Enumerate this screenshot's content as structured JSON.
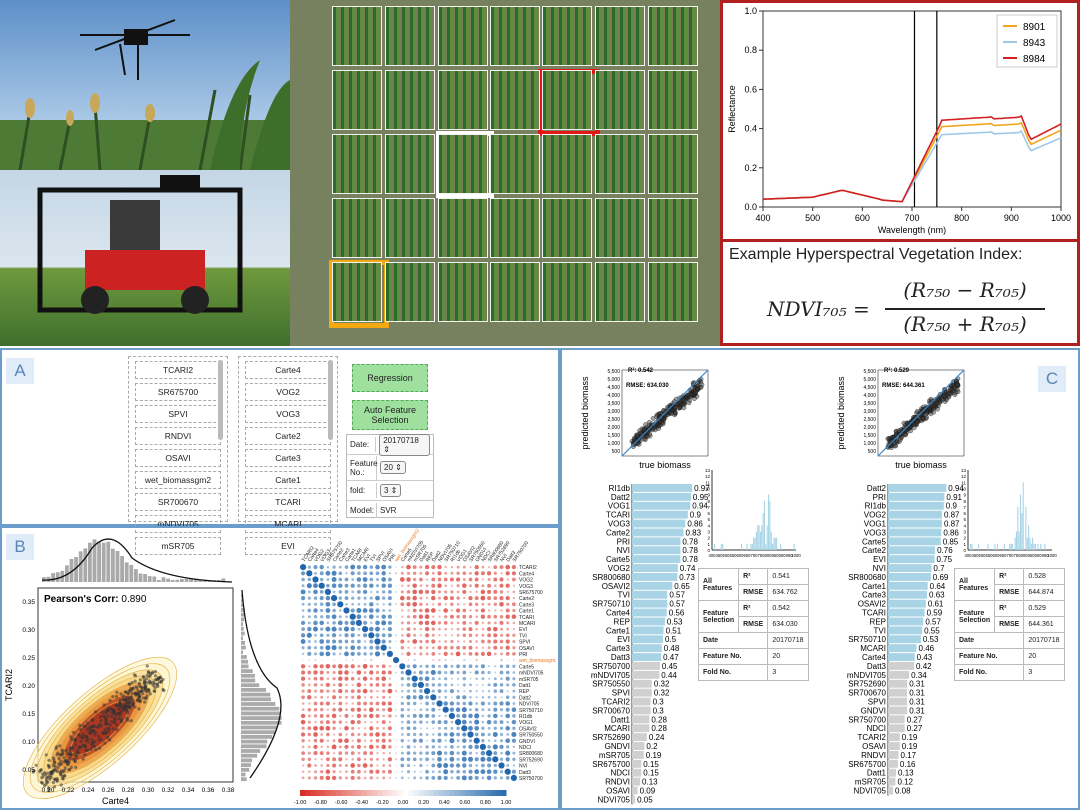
{
  "spectrum": {
    "legend": [
      "8901",
      "8943",
      "8984"
    ],
    "colors": {
      "8901": "#f2a41a",
      "8943": "#9ec9e6",
      "8984": "#d42020"
    },
    "xlabel": "Wavelength (nm)",
    "ylabel": "Reflectance",
    "xticks": [
      "400",
      "500",
      "600",
      "700",
      "800",
      "900",
      "1000"
    ],
    "yticks": [
      "0.0",
      "0.2",
      "0.4",
      "0.6",
      "0.8",
      "1.0"
    ]
  },
  "formula": {
    "title": "Example Hyperspectral Vegetation Index:",
    "lhs": "NDVI₇₀₅ =",
    "numerator": "(R₇₅₀ − R₇₀₅)",
    "denominator": "(R₇₅₀ + R₇₀₅)"
  },
  "panelA": {
    "label": "A",
    "list1": [
      "TCARI2",
      "SR675700",
      "SPVI",
      "RNDVI",
      "OSAVI",
      "wet_biomassgm2",
      "SR700670",
      "mNDVI705",
      "mSR705"
    ],
    "list2": [
      "Carte4",
      "VOG2",
      "VOG3",
      "Carte2",
      "Carte3",
      "Carte1",
      "TCARI",
      "MCARI",
      "EVI"
    ],
    "regression": "Regression",
    "auto": "Auto Feature Selection",
    "form": {
      "date_label": "Date:",
      "date_value": "20170718",
      "feature_label": "Feature No.:",
      "feature_value": "20",
      "fold_label": "fold:",
      "fold_value": "3",
      "model_label": "Model:",
      "model_value": "SVR"
    }
  },
  "panelB": {
    "label": "B",
    "corr": "Pearson's Corr: ",
    "corr_value": "0.890",
    "xlabel": "Carte4",
    "ylabel": "TCARI2",
    "xticks": [
      "0.20",
      "0.22",
      "0.24",
      "0.26",
      "0.28",
      "0.30",
      "0.32",
      "0.34",
      "0.36",
      "0.38"
    ],
    "yticks": [
      "0.05",
      "0.10",
      "0.15",
      "0.20",
      "0.25",
      "0.30",
      "0.35"
    ],
    "heat_labels": [
      "TCARI2",
      "Carte4",
      "VOG2",
      "VOG3",
      "SR675700",
      "Carte2",
      "Carte3",
      "Carte1",
      "TCARI",
      "MCARI",
      "EVI",
      "TVI",
      "SPVI",
      "OSAVI",
      "PRI",
      "wet_biomassgm2",
      "Carte5",
      "mNDVI705",
      "mSR705",
      "Datt1",
      "REP",
      "Datt2",
      "NDVI705",
      "SR750710",
      "RI1db",
      "VOG1",
      "OSAVI2",
      "SR750550",
      "GNDVI",
      "NDCI",
      "SR800680",
      "SR752690",
      "NVI",
      "Datt3",
      "SR750700"
    ],
    "colorbar": [
      "-1.00",
      "-0.80",
      "-0.60",
      "-0.40",
      "-0.20",
      "0.00",
      "0.20",
      "0.40",
      "0.60",
      "0.80",
      "1.00"
    ]
  },
  "panelC": {
    "label": "C",
    "left": {
      "r2": "R²: 0.542",
      "rmse": "RMSE: 634.030",
      "xlabel": "true biomass",
      "ylabel": "predicted biomass",
      "yticks": [
        "5,500",
        "5,000",
        "4,500",
        "4,000",
        "3,500",
        "3,000",
        "2,500",
        "2,000",
        "1,500",
        "1,000",
        "500"
      ],
      "bars": [
        [
          "RI1db",
          0.97
        ],
        [
          "Datt2",
          0.95
        ],
        [
          "VOG1",
          0.94
        ],
        [
          "TCARI",
          0.9
        ],
        [
          "VOG3",
          0.86
        ],
        [
          "Carte2",
          0.83
        ],
        [
          "PRI",
          0.78
        ],
        [
          "NVI",
          0.78
        ],
        [
          "Carte5",
          0.78
        ],
        [
          "VOG2",
          0.74
        ],
        [
          "SR800680",
          0.73
        ],
        [
          "OSAVI2",
          0.65
        ],
        [
          "TVI",
          0.57
        ],
        [
          "SR750710",
          0.57
        ],
        [
          "Carte4",
          0.56
        ],
        [
          "REP",
          0.53
        ],
        [
          "Carte1",
          0.51
        ],
        [
          "EVI",
          0.5
        ],
        [
          "Carte3",
          0.48
        ],
        [
          "Datt3",
          0.47
        ],
        [
          "SR750700",
          0.45
        ],
        [
          "mNDVI705",
          0.44
        ],
        [
          "SR750550",
          0.32
        ],
        [
          "SPVI",
          0.32
        ],
        [
          "TCARI2",
          0.3
        ],
        [
          "SR700670",
          0.3
        ],
        [
          "Datt1",
          0.28
        ],
        [
          "MCARI",
          0.28
        ],
        [
          "SR752690",
          0.24
        ],
        [
          "GNDVI",
          0.2
        ],
        [
          "mSR705",
          0.19
        ],
        [
          "SR675700",
          0.15
        ],
        [
          "NDCI",
          0.15
        ],
        [
          "RNDVI",
          0.13
        ],
        [
          "OSAVI",
          0.09
        ],
        [
          "NDVI705",
          0.05
        ]
      ],
      "highlight": 20,
      "table": {
        "all_label": "All Features",
        "r2_label": "R²",
        "all_r2": "0.541",
        "rmse_label": "RMSE",
        "all_rmse": "634.762",
        "fs_label": "Feature Selection",
        "fs_r2": "0.542",
        "fs_rmse": "634.030",
        "date_label": "Date",
        "date": "20170718",
        "fn_label": "Feature No.",
        "fn": "20",
        "fold_label": "Fold No.",
        "fold": "3"
      }
    },
    "right": {
      "r2": "R²: 0.529",
      "rmse": "RMSE: 644.361",
      "xlabel": "true biomass",
      "ylabel": "predicted biomass",
      "bars": [
        [
          "Datt2",
          0.94
        ],
        [
          "PRI",
          0.91
        ],
        [
          "RI1db",
          0.9
        ],
        [
          "VOG2",
          0.87
        ],
        [
          "VOG1",
          0.87
        ],
        [
          "VOG3",
          0.86
        ],
        [
          "Carte5",
          0.85
        ],
        [
          "Carte2",
          0.76
        ],
        [
          "EVI",
          0.75
        ],
        [
          "NVI",
          0.7
        ],
        [
          "SR800680",
          0.69
        ],
        [
          "Carte1",
          0.64
        ],
        [
          "Carte3",
          0.63
        ],
        [
          "OSAVI2",
          0.61
        ],
        [
          "TCARI",
          0.59
        ],
        [
          "REP",
          0.57
        ],
        [
          "TVI",
          0.55
        ],
        [
          "SR750710",
          0.53
        ],
        [
          "MCARI",
          0.46
        ],
        [
          "Carte4",
          0.43
        ],
        [
          "Datt3",
          0.42
        ],
        [
          "mNDVI705",
          0.34
        ],
        [
          "SR752690",
          0.31
        ],
        [
          "SR700670",
          0.31
        ],
        [
          "SPVI",
          0.31
        ],
        [
          "GNDVI",
          0.31
        ],
        [
          "SR750700",
          0.27
        ],
        [
          "NDCI",
          0.27
        ],
        [
          "TCARI2",
          0.19
        ],
        [
          "OSAVI",
          0.19
        ],
        [
          "RNDVI",
          0.17
        ],
        [
          "SR675700",
          0.16
        ],
        [
          "Datt1",
          0.13
        ],
        [
          "mSR705",
          0.12
        ],
        [
          "NDVI705",
          0.08
        ]
      ],
      "highlight": 20,
      "table": {
        "all_label": "All Features",
        "r2_label": "R²",
        "all_r2": "0.528",
        "rmse_label": "RMSE",
        "all_rmse": "644.874",
        "fs_label": "Feature Selection",
        "fs_r2": "0.529",
        "fs_rmse": "644.361",
        "date_label": "Date",
        "date": "20170718",
        "fn_label": "Feature No.",
        "fn": "20",
        "fold_label": "Fold No.",
        "fold": "3"
      }
    },
    "hist_xticks": [
      "400",
      "450",
      "500",
      "550",
      "600",
      "650",
      "700",
      "750",
      "800",
      "850",
      "900",
      "950",
      "1000"
    ],
    "hist_yticks": [
      "0",
      "1",
      "2",
      "3",
      "4",
      "5",
      "6",
      "7",
      "8",
      "9",
      "10",
      "11",
      "12",
      "13"
    ]
  }
}
